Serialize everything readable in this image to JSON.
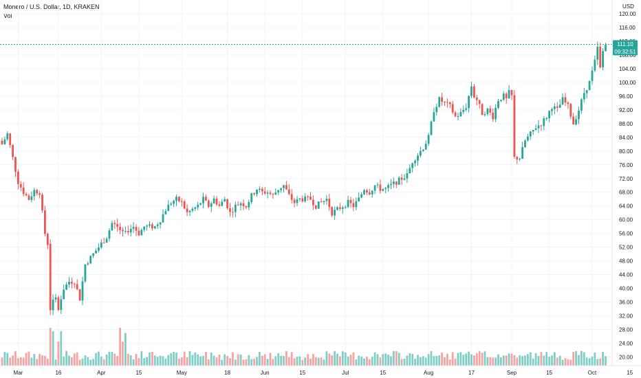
{
  "header": {
    "symbol_title": "Monero / U.S. Dollar, 1D, KRAKEN",
    "volume_label": "Vol"
  },
  "price_axis": {
    "currency": "USD",
    "last_price_label": "111.10",
    "countdown_label": "09:32:51"
  },
  "colors": {
    "up": "#26a69a",
    "down": "#ef5350",
    "up_volume": "#7fcfc6",
    "down_volume": "#f5a4a2",
    "grid": "#f0f3fa",
    "axis_text": "#131722",
    "last_price": "#26a69a"
  },
  "chart_data": {
    "type": "candlestick",
    "title": "Monero / U.S. Dollar, 1D, KRAKEN",
    "ylabel": "USD",
    "ylim": [
      17.5,
      124
    ],
    "y_ticks": [
      20,
      24,
      28,
      32,
      36,
      40,
      44,
      48,
      52,
      56,
      60,
      64,
      68,
      72,
      76,
      80,
      84,
      88,
      92,
      96,
      100,
      104,
      108,
      112,
      116,
      120
    ],
    "x_start_day": 0,
    "x_end_day": 225,
    "x_ticks": [
      {
        "label": "Mar",
        "day": 6
      },
      {
        "label": "16",
        "day": 21
      },
      {
        "label": "Apr",
        "day": 37
      },
      {
        "label": "15",
        "day": 51
      },
      {
        "label": "May",
        "day": 67
      },
      {
        "label": "18",
        "day": 84
      },
      {
        "label": "Jun",
        "day": 98
      },
      {
        "label": "15",
        "day": 112
      },
      {
        "label": "Jul",
        "day": 128
      },
      {
        "label": "15",
        "day": 142
      },
      {
        "label": "Aug",
        "day": 159
      },
      {
        "label": "17",
        "day": 175
      },
      {
        "label": "Sep",
        "day": 190
      },
      {
        "label": "15",
        "day": 204
      },
      {
        "label": "Oct",
        "day": 220
      },
      {
        "label": "15",
        "day": 234
      }
    ],
    "close_anchors": [
      [
        0,
        82
      ],
      [
        2,
        85
      ],
      [
        4,
        78
      ],
      [
        6,
        71
      ],
      [
        8,
        68
      ],
      [
        10,
        66
      ],
      [
        12,
        68.5
      ],
      [
        14,
        68
      ],
      [
        16,
        56
      ],
      [
        17,
        53
      ],
      [
        18,
        34
      ],
      [
        19,
        36
      ],
      [
        20,
        37
      ],
      [
        21,
        34
      ],
      [
        23,
        40
      ],
      [
        25,
        42
      ],
      [
        27,
        42
      ],
      [
        29,
        37
      ],
      [
        31,
        47
      ],
      [
        33,
        49
      ],
      [
        35,
        51
      ],
      [
        37,
        53
      ],
      [
        39,
        55
      ],
      [
        41,
        59
      ],
      [
        43,
        58
      ],
      [
        45,
        56
      ],
      [
        47,
        57
      ],
      [
        49,
        58
      ],
      [
        51,
        56
      ],
      [
        53,
        58
      ],
      [
        55,
        58
      ],
      [
        57,
        58
      ],
      [
        59,
        60
      ],
      [
        61,
        63
      ],
      [
        63,
        65
      ],
      [
        65,
        66
      ],
      [
        67,
        65
      ],
      [
        69,
        62
      ],
      [
        71,
        63
      ],
      [
        73,
        64
      ],
      [
        75,
        66
      ],
      [
        77,
        64
      ],
      [
        79,
        66
      ],
      [
        81,
        64
      ],
      [
        83,
        66
      ],
      [
        85,
        62
      ],
      [
        87,
        64
      ],
      [
        89,
        65
      ],
      [
        91,
        64
      ],
      [
        93,
        67
      ],
      [
        95,
        69
      ],
      [
        97,
        68
      ],
      [
        99,
        68
      ],
      [
        101,
        67
      ],
      [
        103,
        69
      ],
      [
        105,
        70
      ],
      [
        107,
        67
      ],
      [
        109,
        65
      ],
      [
        111,
        66
      ],
      [
        113,
        66
      ],
      [
        115,
        66
      ],
      [
        117,
        64
      ],
      [
        119,
        65
      ],
      [
        121,
        66
      ],
      [
        123,
        62
      ],
      [
        125,
        63
      ],
      [
        127,
        64
      ],
      [
        129,
        65
      ],
      [
        131,
        64
      ],
      [
        133,
        66
      ],
      [
        135,
        69
      ],
      [
        137,
        68
      ],
      [
        139,
        70
      ],
      [
        141,
        69
      ],
      [
        143,
        69
      ],
      [
        145,
        70
      ],
      [
        147,
        71
      ],
      [
        149,
        72
      ],
      [
        151,
        73
      ],
      [
        153,
        77
      ],
      [
        155,
        79
      ],
      [
        157,
        81
      ],
      [
        159,
        84
      ],
      [
        160,
        88
      ],
      [
        161,
        92
      ],
      [
        163,
        95
      ],
      [
        165,
        94
      ],
      [
        167,
        93
      ],
      [
        169,
        90
      ],
      [
        171,
        91
      ],
      [
        173,
        93
      ],
      [
        175,
        99
      ],
      [
        176,
        96
      ],
      [
        177,
        95
      ],
      [
        179,
        91
      ],
      [
        181,
        92
      ],
      [
        183,
        90
      ],
      [
        185,
        95
      ],
      [
        187,
        96
      ],
      [
        188,
        95
      ],
      [
        189,
        97
      ],
      [
        190,
        96
      ],
      [
        191,
        78
      ],
      [
        193,
        78
      ],
      [
        195,
        83
      ],
      [
        197,
        85
      ],
      [
        199,
        87
      ],
      [
        201,
        88
      ],
      [
        203,
        90
      ],
      [
        205,
        93
      ],
      [
        207,
        92
      ],
      [
        209,
        95
      ],
      [
        211,
        93
      ],
      [
        213,
        88
      ],
      [
        215,
        92
      ],
      [
        217,
        97
      ],
      [
        219,
        100
      ],
      [
        221,
        106
      ],
      [
        222,
        110
      ],
      [
        223,
        104
      ],
      [
        224,
        109
      ],
      [
        225,
        111
      ]
    ],
    "volume": {
      "levels": [
        20,
        24,
        28
      ],
      "base_ylim": [
        18,
        30
      ],
      "spikes": [
        {
          "day": 18,
          "value": 28.5
        },
        {
          "day": 19,
          "value": 27.5
        },
        {
          "day": 21,
          "value": 24.5
        },
        {
          "day": 22,
          "value": 27.5
        },
        {
          "day": 44,
          "value": 28.5
        },
        {
          "day": 46,
          "value": 27
        },
        {
          "day": 45,
          "value": 24.5
        }
      ]
    }
  }
}
